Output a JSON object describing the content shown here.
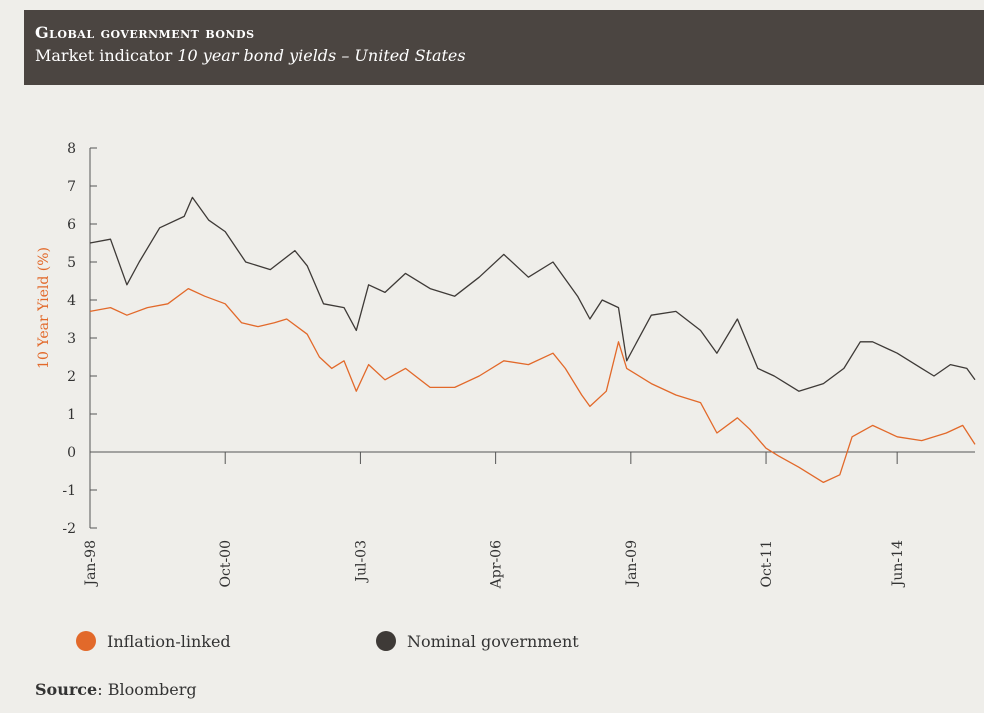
{
  "header": {
    "title": "Global government bonds",
    "subtitle_prefix": "Market indicator ",
    "subtitle_italic": "10 year bond yields – United States"
  },
  "source": {
    "label": "Source",
    "text": ": Bloomberg"
  },
  "colors": {
    "header_bg": "#4b4541",
    "background": "#efeeea",
    "inflation": "#e2692a",
    "nominal": "#3e3a37",
    "axis": "#555555"
  },
  "chart_data": {
    "type": "line",
    "ylabel": "10 Year Yield (%)",
    "ylim": [
      -2,
      8
    ],
    "yticks": [
      -2,
      -1,
      0,
      1,
      2,
      3,
      4,
      5,
      6,
      7,
      8
    ],
    "xlim": [
      "1998-01",
      "2016-01"
    ],
    "xticks": [
      {
        "label": "Jan-98",
        "date": "1998-01"
      },
      {
        "label": "Oct-00",
        "date": "2000-10"
      },
      {
        "label": "Jul-03",
        "date": "2003-07"
      },
      {
        "label": "Apr-06",
        "date": "2006-04"
      },
      {
        "label": "Jan-09",
        "date": "2009-01"
      },
      {
        "label": "Oct-11",
        "date": "2011-10"
      },
      {
        "label": "Jun-14",
        "date": "2014-06"
      }
    ],
    "legend_position": "bottom-left",
    "series": [
      {
        "name": "Inflation-linked",
        "color": "#e2692a",
        "points": [
          [
            "1998-01",
            3.7
          ],
          [
            "1998-06",
            3.8
          ],
          [
            "1998-10",
            3.6
          ],
          [
            "1999-03",
            3.8
          ],
          [
            "1999-08",
            3.9
          ],
          [
            "2000-01",
            4.3
          ],
          [
            "2000-05",
            4.1
          ],
          [
            "2000-10",
            3.9
          ],
          [
            "2001-02",
            3.4
          ],
          [
            "2001-06",
            3.3
          ],
          [
            "2001-10",
            3.4
          ],
          [
            "2002-01",
            3.5
          ],
          [
            "2002-06",
            3.1
          ],
          [
            "2002-09",
            2.5
          ],
          [
            "2002-12",
            2.2
          ],
          [
            "2003-03",
            2.4
          ],
          [
            "2003-06",
            1.6
          ],
          [
            "2003-09",
            2.3
          ],
          [
            "2004-01",
            1.9
          ],
          [
            "2004-06",
            2.2
          ],
          [
            "2004-12",
            1.7
          ],
          [
            "2005-06",
            1.7
          ],
          [
            "2005-12",
            2.0
          ],
          [
            "2006-06",
            2.4
          ],
          [
            "2006-12",
            2.3
          ],
          [
            "2007-06",
            2.6
          ],
          [
            "2007-09",
            2.2
          ],
          [
            "2008-01",
            1.5
          ],
          [
            "2008-03",
            1.2
          ],
          [
            "2008-07",
            1.6
          ],
          [
            "2008-10",
            2.9
          ],
          [
            "2008-12",
            2.2
          ],
          [
            "2009-06",
            1.8
          ],
          [
            "2009-12",
            1.5
          ],
          [
            "2010-06",
            1.3
          ],
          [
            "2010-10",
            0.5
          ],
          [
            "2011-03",
            0.9
          ],
          [
            "2011-06",
            0.6
          ],
          [
            "2011-10",
            0.1
          ],
          [
            "2012-01",
            -0.1
          ],
          [
            "2012-06",
            -0.4
          ],
          [
            "2012-12",
            -0.8
          ],
          [
            "2013-04",
            -0.6
          ],
          [
            "2013-07",
            0.4
          ],
          [
            "2013-12",
            0.7
          ],
          [
            "2014-06",
            0.4
          ],
          [
            "2014-12",
            0.3
          ],
          [
            "2015-06",
            0.5
          ],
          [
            "2015-10",
            0.7
          ],
          [
            "2016-01",
            0.2
          ]
        ]
      },
      {
        "name": "Nominal government",
        "color": "#3e3a37",
        "points": [
          [
            "1998-01",
            5.5
          ],
          [
            "1998-06",
            5.6
          ],
          [
            "1998-10",
            4.4
          ],
          [
            "1999-01",
            5.0
          ],
          [
            "1999-06",
            5.9
          ],
          [
            "1999-12",
            6.2
          ],
          [
            "2000-02",
            6.7
          ],
          [
            "2000-06",
            6.1
          ],
          [
            "2000-10",
            5.8
          ],
          [
            "2001-03",
            5.0
          ],
          [
            "2001-09",
            4.8
          ],
          [
            "2002-03",
            5.3
          ],
          [
            "2002-06",
            4.9
          ],
          [
            "2002-10",
            3.9
          ],
          [
            "2003-03",
            3.8
          ],
          [
            "2003-06",
            3.2
          ],
          [
            "2003-09",
            4.4
          ],
          [
            "2004-01",
            4.2
          ],
          [
            "2004-06",
            4.7
          ],
          [
            "2004-12",
            4.3
          ],
          [
            "2005-06",
            4.1
          ],
          [
            "2005-12",
            4.6
          ],
          [
            "2006-06",
            5.2
          ],
          [
            "2006-12",
            4.6
          ],
          [
            "2007-06",
            5.0
          ],
          [
            "2007-12",
            4.1
          ],
          [
            "2008-03",
            3.5
          ],
          [
            "2008-06",
            4.0
          ],
          [
            "2008-10",
            3.8
          ],
          [
            "2008-12",
            2.4
          ],
          [
            "2009-06",
            3.6
          ],
          [
            "2009-12",
            3.7
          ],
          [
            "2010-06",
            3.2
          ],
          [
            "2010-10",
            2.6
          ],
          [
            "2011-03",
            3.5
          ],
          [
            "2011-08",
            2.2
          ],
          [
            "2011-12",
            2.0
          ],
          [
            "2012-06",
            1.6
          ],
          [
            "2012-12",
            1.8
          ],
          [
            "2013-05",
            2.2
          ],
          [
            "2013-09",
            2.9
          ],
          [
            "2013-12",
            2.9
          ],
          [
            "2014-06",
            2.6
          ],
          [
            "2014-12",
            2.2
          ],
          [
            "2015-03",
            2.0
          ],
          [
            "2015-07",
            2.3
          ],
          [
            "2015-11",
            2.2
          ],
          [
            "2016-01",
            1.9
          ]
        ]
      }
    ]
  }
}
